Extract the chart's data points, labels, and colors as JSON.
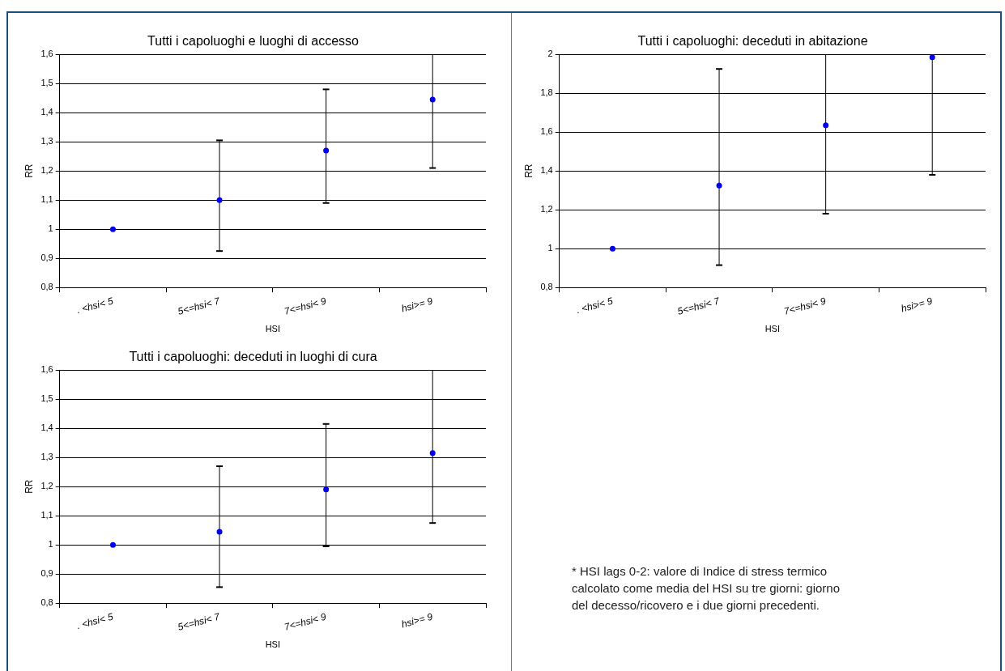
{
  "chart_data": [
    {
      "type": "scatter",
      "title": "Tutti i capoluoghi e luoghi di accesso",
      "xlabel": "HSI",
      "ylabel": "RR",
      "categories": [
        ". <hsi< 5",
        "5<=hsi< 7",
        "7<=hsi< 9",
        "hsi>= 9"
      ],
      "series": [
        {
          "color": "#0000ee",
          "values": [
            1,
            1.1,
            1.27,
            1.445
          ],
          "errors": [
            null,
            [
              0.925,
              1.305
            ],
            [
              1.09,
              1.48
            ],
            [
              1.21,
              1.6
            ]
          ]
        }
      ],
      "ylim": [
        0.8,
        1.6
      ],
      "yticks": [
        {
          "value": 0.8,
          "label": "0,8"
        },
        {
          "value": 0.9,
          "label": "0,9"
        },
        {
          "value": 1,
          "label": "1"
        },
        {
          "value": 1.1,
          "label": "1,1"
        },
        {
          "value": 1.2,
          "label": "1,2"
        },
        {
          "value": 1.3,
          "label": "1,3"
        },
        {
          "value": 1.4,
          "label": "1,4"
        },
        {
          "value": 1.5,
          "label": "1,5"
        },
        {
          "value": 1.6,
          "label": "1,6"
        }
      ],
      "grid": "y",
      "marker": "circle",
      "legend": false
    },
    {
      "type": "scatter",
      "title": "Tutti i capoluoghi: deceduti in abitazione",
      "xlabel": "HSI",
      "ylabel": "RR",
      "categories": [
        ". <hsi< 5",
        "5<=hsi< 7",
        "7<=hsi< 9",
        "hsi>= 9"
      ],
      "series": [
        {
          "color": "#0000ee",
          "values": [
            1,
            1.325,
            1.635,
            1.985
          ],
          "errors": [
            null,
            [
              0.915,
              1.925
            ],
            [
              1.18,
              2
            ],
            [
              1.38,
              2
            ]
          ]
        }
      ],
      "ylim": [
        0.8,
        2
      ],
      "yticks": [
        {
          "value": 0.8,
          "label": "0,8"
        },
        {
          "value": 1,
          "label": "1"
        },
        {
          "value": 1.2,
          "label": "1,2"
        },
        {
          "value": 1.4,
          "label": "1,4"
        },
        {
          "value": 1.6,
          "label": "1,6"
        },
        {
          "value": 1.8,
          "label": "1,8"
        },
        {
          "value": 2,
          "label": "2"
        }
      ],
      "grid": "y",
      "marker": "circle",
      "legend": false
    },
    {
      "type": "scatter",
      "title": "Tutti i capoluoghi: deceduti in luoghi di cura",
      "xlabel": "HSI",
      "ylabel": "RR",
      "categories": [
        ". <hsi< 5",
        "5<=hsi< 7",
        "7<=hsi< 9",
        "hsi>= 9"
      ],
      "series": [
        {
          "color": "#0000ee",
          "values": [
            1,
            1.045,
            1.19,
            1.315
          ],
          "errors": [
            null,
            [
              0.855,
              1.27
            ],
            [
              0.995,
              1.415
            ],
            [
              1.075,
              1.6
            ]
          ]
        }
      ],
      "ylim": [
        0.8,
        1.6
      ],
      "yticks": [
        {
          "value": 0.8,
          "label": "0,8"
        },
        {
          "value": 0.9,
          "label": "0,9"
        },
        {
          "value": 1,
          "label": "1"
        },
        {
          "value": 1.1,
          "label": "1,1"
        },
        {
          "value": 1.2,
          "label": "1,2"
        },
        {
          "value": 1.3,
          "label": "1,3"
        },
        {
          "value": 1.4,
          "label": "1,4"
        },
        {
          "value": 1.5,
          "label": "1,5"
        },
        {
          "value": 1.6,
          "label": "1,6"
        }
      ],
      "grid": "y",
      "marker": "circle",
      "legend": false
    },
    {
      "type": "other",
      "annotations": [
        "* HSI lags 0-2: valore di Indice di stress termico calcolato come media del HSI su tre giorni: giorno del decesso/ricovero e i due giorni precedenti."
      ]
    }
  ]
}
